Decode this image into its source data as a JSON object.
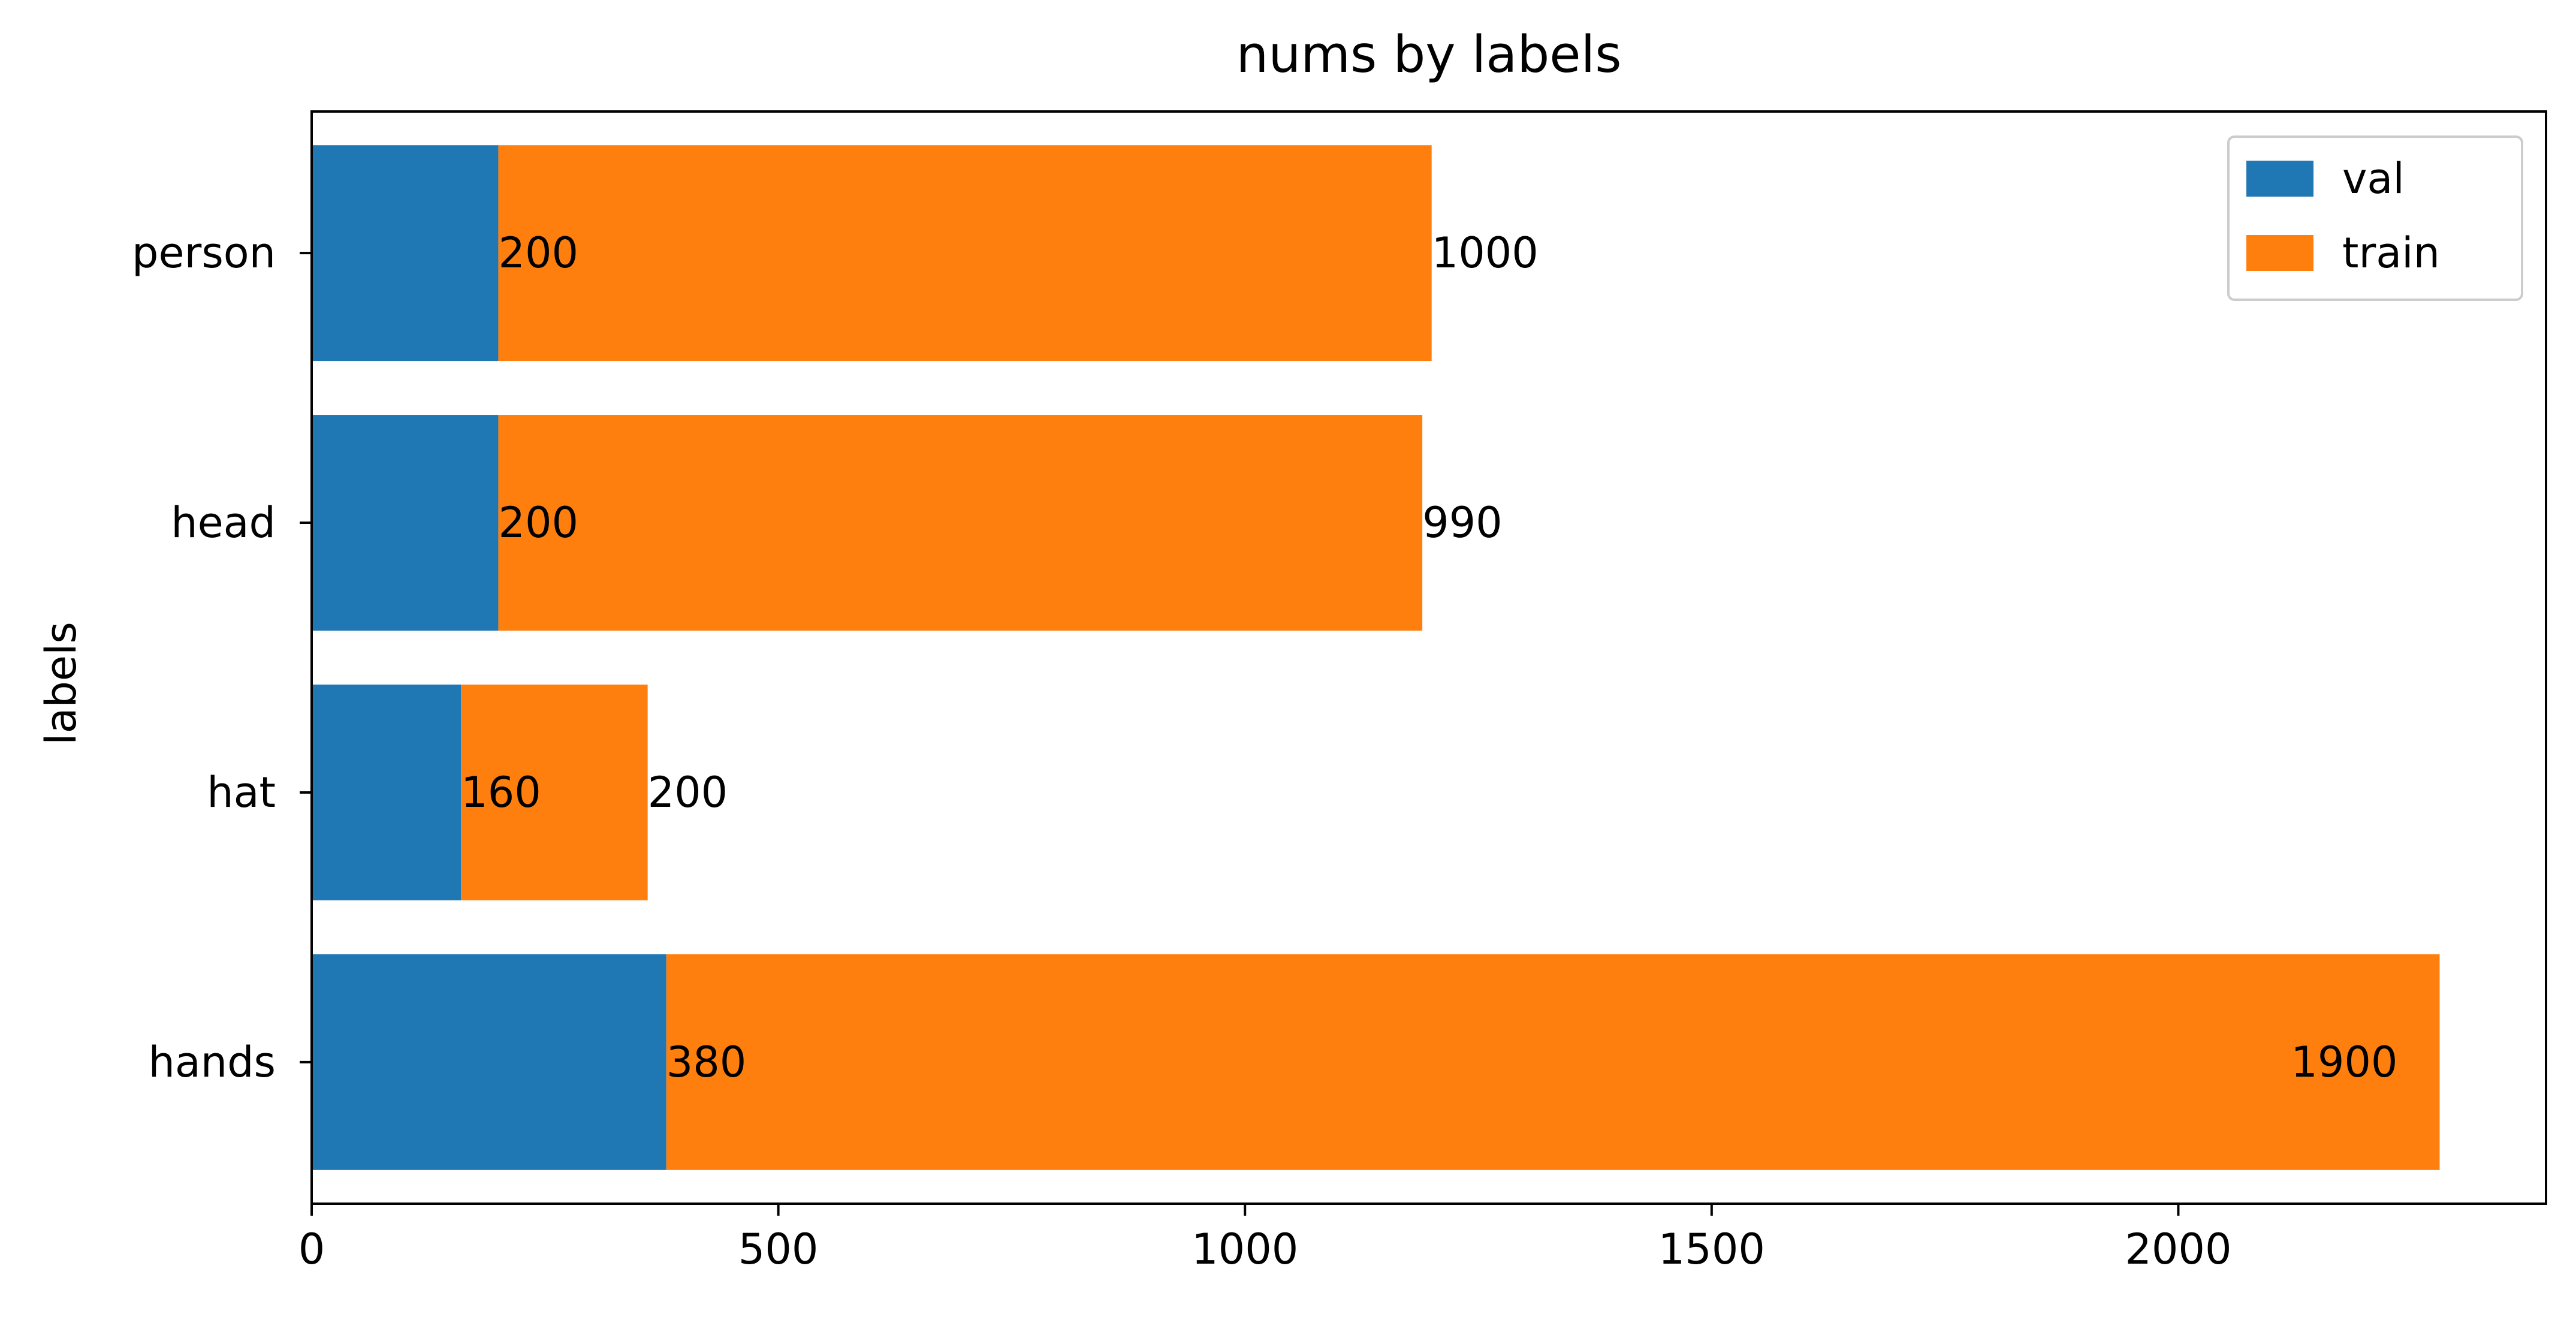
{
  "chart_data": {
    "type": "bar",
    "orientation": "horizontal",
    "stacked": true,
    "title": "nums by labels",
    "xlabel": "",
    "ylabel": "labels",
    "categories": [
      "hands",
      "hat",
      "head",
      "person"
    ],
    "series": [
      {
        "name": "val",
        "color": "#1f77b4",
        "values": [
          380,
          160,
          200,
          200
        ]
      },
      {
        "name": "train",
        "color": "#ff7f0e",
        "values": [
          1900,
          200,
          990,
          1000
        ]
      }
    ],
    "xlim": [
      0,
      2394
    ],
    "xticks": [
      0,
      500,
      1000,
      1500,
      2000
    ],
    "xtick_labels": [
      "0",
      "500",
      "1000",
      "1500",
      "2000"
    ],
    "grid": false,
    "legend_position": "top-right"
  }
}
